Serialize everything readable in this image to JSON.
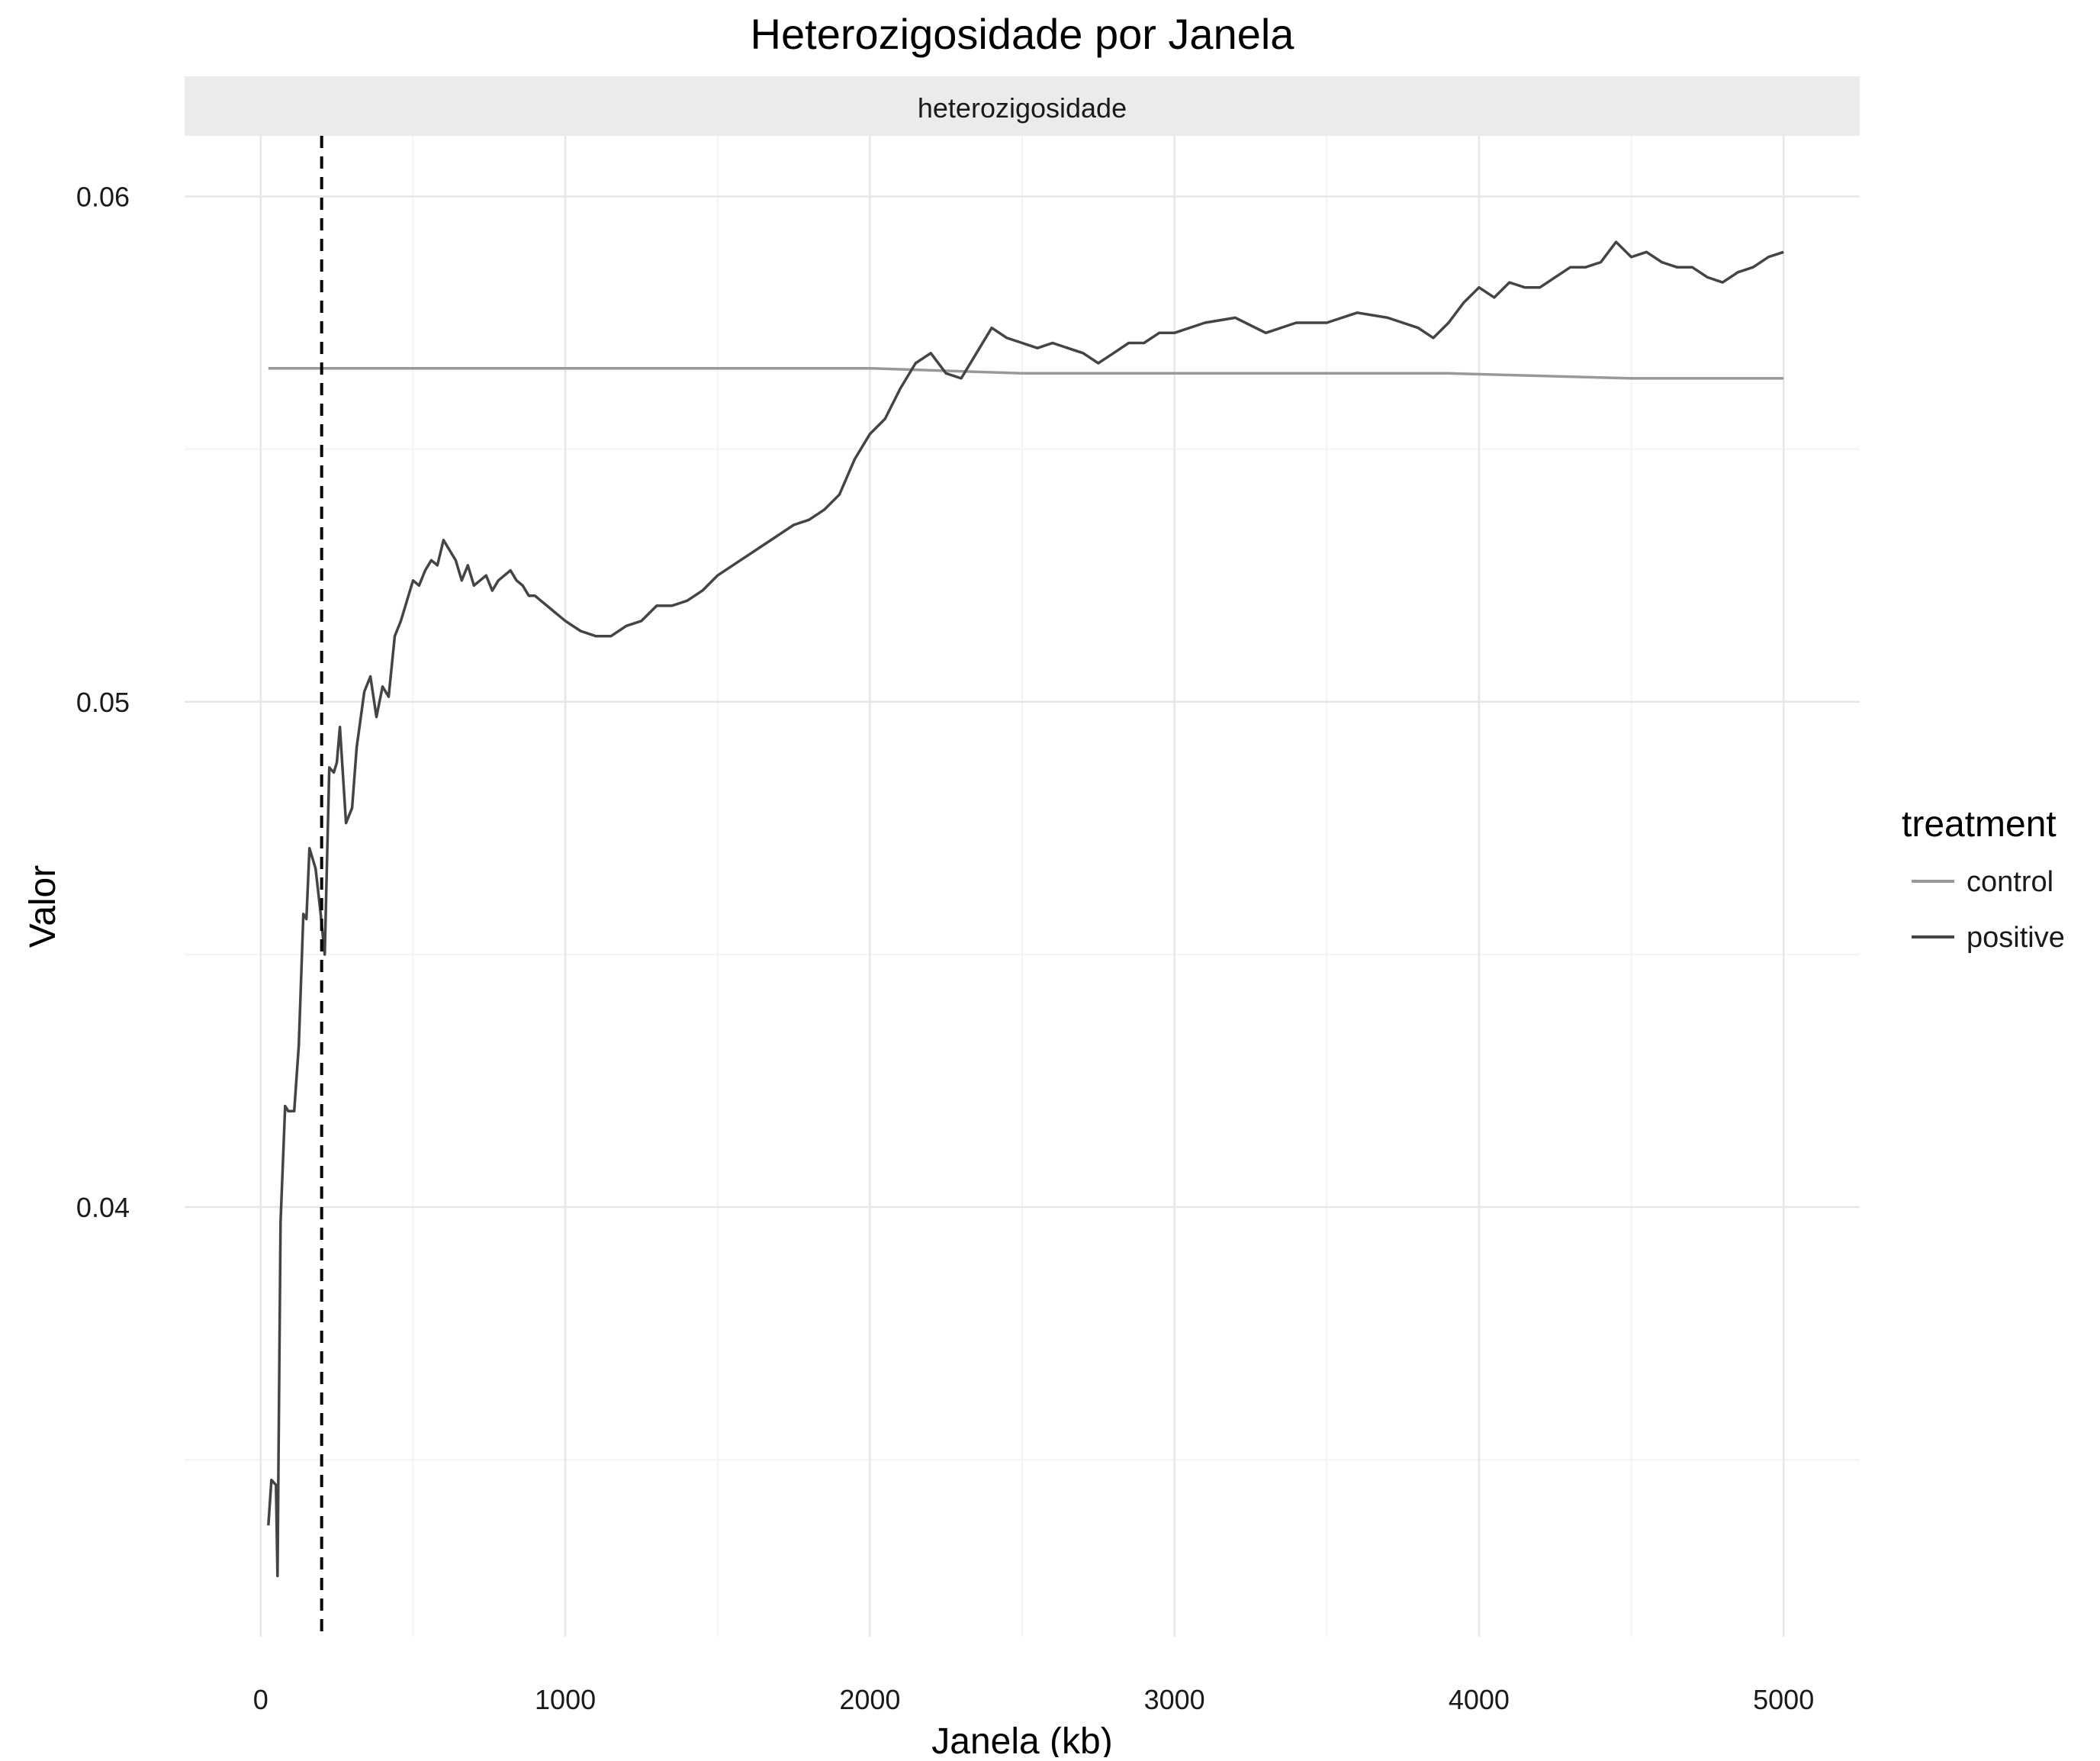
{
  "chart_data": {
    "type": "line",
    "title": "Heterozigosidade por Janela",
    "facet_label": "heterozigosidade",
    "xlabel": "Janela (kb)",
    "ylabel": "Valor",
    "xlim": [
      -250,
      5250
    ],
    "ylim": [
      0.0315,
      0.0612
    ],
    "x_ticks": [
      0,
      1000,
      2000,
      3000,
      4000,
      5000
    ],
    "x_tick_labels": [
      "0",
      "1000",
      "2000",
      "3000",
      "4000",
      "5000"
    ],
    "y_ticks": [
      0.04,
      0.05,
      0.06
    ],
    "y_tick_labels": [
      "0.04",
      "0.05",
      "0.06"
    ],
    "y_minor_ticks": [
      0.035,
      0.045,
      0.055
    ],
    "x_minor_ticks": [
      500,
      1500,
      2500,
      3500,
      4500
    ],
    "grid": true,
    "vline": {
      "x": 200,
      "style": "dashed",
      "color": "#000000"
    },
    "legend": {
      "title": "treatment",
      "position": "right"
    },
    "series": [
      {
        "name": "control",
        "color": "#999999",
        "x": [
          25,
          500,
          1000,
          1500,
          2000,
          2500,
          3000,
          3500,
          3900,
          4500,
          5000
        ],
        "y": [
          0.0566,
          0.0566,
          0.0566,
          0.0566,
          0.0566,
          0.0565,
          0.0565,
          0.0565,
          0.0565,
          0.0564,
          0.0564
        ]
      },
      {
        "name": "positive",
        "color": "#444444",
        "x": [
          25,
          35,
          50,
          55,
          65,
          80,
          90,
          110,
          125,
          140,
          150,
          160,
          180,
          195,
          210,
          225,
          240,
          250,
          260,
          280,
          300,
          315,
          340,
          360,
          380,
          400,
          420,
          440,
          460,
          480,
          500,
          520,
          540,
          560,
          580,
          600,
          620,
          640,
          660,
          680,
          700,
          720,
          740,
          760,
          780,
          800,
          820,
          840,
          860,
          880,
          900,
          920,
          940,
          960,
          980,
          1000,
          1050,
          1100,
          1150,
          1200,
          1250,
          1300,
          1350,
          1400,
          1450,
          1500,
          1550,
          1600,
          1650,
          1700,
          1750,
          1800,
          1850,
          1900,
          1950,
          2000,
          2050,
          2100,
          2150,
          2200,
          2250,
          2300,
          2350,
          2400,
          2450,
          2500,
          2550,
          2600,
          2650,
          2700,
          2750,
          2800,
          2850,
          2900,
          2950,
          3000,
          3100,
          3200,
          3300,
          3400,
          3500,
          3600,
          3700,
          3800,
          3850,
          3900,
          3950,
          4000,
          4050,
          4100,
          4150,
          4200,
          4250,
          4300,
          4350,
          4400,
          4450,
          4500,
          4550,
          4600,
          4650,
          4700,
          4750,
          4800,
          4850,
          4900,
          4950,
          5000
        ],
        "y": [
          0.0337,
          0.0346,
          0.0345,
          0.0327,
          0.0397,
          0.042,
          0.0419,
          0.0419,
          0.0432,
          0.0458,
          0.0457,
          0.0471,
          0.0467,
          0.0459,
          0.045,
          0.0487,
          0.0486,
          0.0488,
          0.0495,
          0.0476,
          0.0479,
          0.0491,
          0.0502,
          0.0505,
          0.0497,
          0.0503,
          0.0501,
          0.0513,
          0.0516,
          0.052,
          0.0524,
          0.0523,
          0.0526,
          0.0528,
          0.0527,
          0.0532,
          0.053,
          0.0528,
          0.0524,
          0.0527,
          0.0523,
          0.0524,
          0.0525,
          0.0522,
          0.0524,
          0.0525,
          0.0526,
          0.0524,
          0.0523,
          0.0521,
          0.0521,
          0.052,
          0.0519,
          0.0518,
          0.0517,
          0.0516,
          0.0514,
          0.0513,
          0.0513,
          0.0515,
          0.0516,
          0.0519,
          0.0519,
          0.052,
          0.0522,
          0.0525,
          0.0527,
          0.0529,
          0.0531,
          0.0533,
          0.0535,
          0.0536,
          0.0538,
          0.0541,
          0.0548,
          0.0553,
          0.0556,
          0.0562,
          0.0567,
          0.0569,
          0.0565,
          0.0564,
          0.0569,
          0.0574,
          0.0572,
          0.0571,
          0.057,
          0.0571,
          0.057,
          0.0569,
          0.0567,
          0.0569,
          0.0571,
          0.0571,
          0.0573,
          0.0573,
          0.0575,
          0.0576,
          0.0573,
          0.0575,
          0.0575,
          0.0577,
          0.0576,
          0.0574,
          0.0572,
          0.0575,
          0.0579,
          0.0582,
          0.058,
          0.0583,
          0.0582,
          0.0582,
          0.0584,
          0.0586,
          0.0586,
          0.0587,
          0.0591,
          0.0588,
          0.0589,
          0.0587,
          0.0586,
          0.0586,
          0.0584,
          0.0583,
          0.0585,
          0.0586,
          0.0588,
          0.0589
        ]
      }
    ]
  }
}
